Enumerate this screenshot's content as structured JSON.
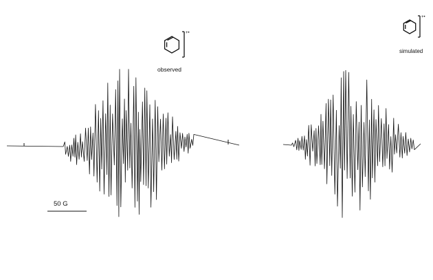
{
  "chart_data": [
    {
      "type": "line",
      "label": "observed",
      "scale_bar": "50 G",
      "radical_charge": "+•",
      "structure": "1,3-cyclohexadiene",
      "xlabel": "",
      "ylabel": "",
      "grid": false
    },
    {
      "type": "line",
      "label": "simulated",
      "radical_charge": "+•",
      "structure": "1,3-cyclohexadiene",
      "xlabel": "",
      "ylabel": "",
      "grid": false
    }
  ],
  "colors": {
    "trace": "#111111",
    "background": "#ffffff"
  }
}
